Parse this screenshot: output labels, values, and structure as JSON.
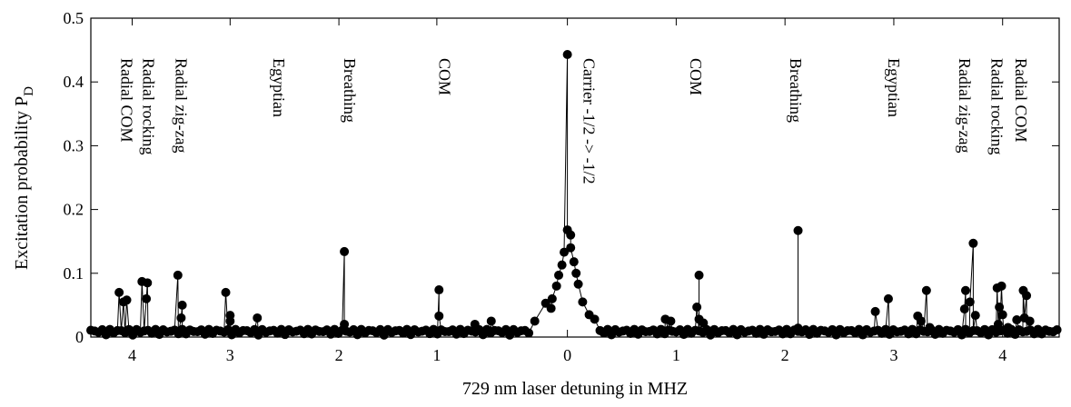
{
  "chart_data": {
    "type": "scatter",
    "xlabel": "729 nm laser detuning in MHZ",
    "ylabel": "Excitation probability P",
    "ylabel_sub": "D",
    "ylim": [
      0,
      0.5
    ],
    "xlim": [
      -4.38,
      4.52
    ],
    "yticks": [
      {
        "v": 0,
        "label": "0"
      },
      {
        "v": 0.1,
        "label": "0.1"
      },
      {
        "v": 0.2,
        "label": "0.2"
      },
      {
        "v": 0.3,
        "label": "0.3"
      },
      {
        "v": 0.4,
        "label": "0.4"
      },
      {
        "v": 0.5,
        "label": "0.5"
      }
    ],
    "xticks": [
      {
        "v": -4.0,
        "label": "4"
      },
      {
        "v": -3.1,
        "label": "3"
      },
      {
        "v": -2.1,
        "label": "2"
      },
      {
        "v": -1.2,
        "label": "1"
      },
      {
        "v": 0.0,
        "label": "0"
      },
      {
        "v": 1.0,
        "label": "1"
      },
      {
        "v": 2.0,
        "label": "2"
      },
      {
        "v": 3.0,
        "label": "3"
      },
      {
        "v": 4.0,
        "label": "4"
      }
    ],
    "annotations": [
      {
        "text": "Radial COM",
        "x": -4.1
      },
      {
        "text": "Radial rocking",
        "x": -3.9
      },
      {
        "text": "Radial zig-zag",
        "x": -3.6
      },
      {
        "text": "Egyptian",
        "x": -2.7
      },
      {
        "text": "Breathing",
        "x": -2.05
      },
      {
        "text": "COM",
        "x": -1.18
      },
      {
        "text": "Carrier -1/2 -> -1/2",
        "x": 0.15
      },
      {
        "text": "COM",
        "x": 1.13
      },
      {
        "text": "Breathing",
        "x": 2.05
      },
      {
        "text": "Egyptian",
        "x": 2.95
      },
      {
        "text": "Radial zig-zag",
        "x": 3.6
      },
      {
        "text": "Radial rocking",
        "x": 3.9
      },
      {
        "text": "Radial COM",
        "x": 4.12
      }
    ],
    "peaks": [
      {
        "x": -4.12,
        "y": 0.07
      },
      {
        "x": -4.08,
        "y": 0.055
      },
      {
        "x": -4.05,
        "y": 0.058
      },
      {
        "x": -3.91,
        "y": 0.087
      },
      {
        "x": -3.86,
        "y": 0.085
      },
      {
        "x": -3.87,
        "y": 0.06
      },
      {
        "x": -3.58,
        "y": 0.097
      },
      {
        "x": -3.54,
        "y": 0.05
      },
      {
        "x": -3.55,
        "y": 0.03
      },
      {
        "x": -3.14,
        "y": 0.07
      },
      {
        "x": -3.1,
        "y": 0.034
      },
      {
        "x": -3.1,
        "y": 0.025
      },
      {
        "x": -2.85,
        "y": 0.03
      },
      {
        "x": -2.05,
        "y": 0.134
      },
      {
        "x": -2.05,
        "y": 0.02
      },
      {
        "x": -1.18,
        "y": 0.074
      },
      {
        "x": -1.18,
        "y": 0.033
      },
      {
        "x": -0.85,
        "y": 0.02
      },
      {
        "x": -0.7,
        "y": 0.025
      },
      {
        "x": -0.3,
        "y": 0.025
      },
      {
        "x": 0.0,
        "y": 0.443
      },
      {
        "x": 0.0,
        "y": 0.168
      },
      {
        "x": 0.03,
        "y": 0.16
      },
      {
        "x": 0.03,
        "y": 0.14
      },
      {
        "x": -0.03,
        "y": 0.133
      },
      {
        "x": 0.06,
        "y": 0.118
      },
      {
        "x": -0.05,
        "y": 0.113
      },
      {
        "x": -0.08,
        "y": 0.097
      },
      {
        "x": 0.08,
        "y": 0.1
      },
      {
        "x": -0.1,
        "y": 0.08
      },
      {
        "x": 0.1,
        "y": 0.083
      },
      {
        "x": -0.14,
        "y": 0.06
      },
      {
        "x": 0.14,
        "y": 0.055
      },
      {
        "x": -0.2,
        "y": 0.053
      },
      {
        "x": 0.2,
        "y": 0.035
      },
      {
        "x": -0.15,
        "y": 0.045
      },
      {
        "x": 0.25,
        "y": 0.028
      },
      {
        "x": 0.9,
        "y": 0.028
      },
      {
        "x": 0.95,
        "y": 0.025
      },
      {
        "x": 1.21,
        "y": 0.097
      },
      {
        "x": 1.19,
        "y": 0.047
      },
      {
        "x": 1.21,
        "y": 0.028
      },
      {
        "x": 1.25,
        "y": 0.022
      },
      {
        "x": 2.12,
        "y": 0.167
      },
      {
        "x": 2.12,
        "y": 0.014
      },
      {
        "x": 2.83,
        "y": 0.04
      },
      {
        "x": 2.95,
        "y": 0.06
      },
      {
        "x": 3.22,
        "y": 0.033
      },
      {
        "x": 3.25,
        "y": 0.025
      },
      {
        "x": 3.3,
        "y": 0.073
      },
      {
        "x": 3.33,
        "y": 0.015
      },
      {
        "x": 3.66,
        "y": 0.073
      },
      {
        "x": 3.65,
        "y": 0.044
      },
      {
        "x": 3.7,
        "y": 0.055
      },
      {
        "x": 3.73,
        "y": 0.147
      },
      {
        "x": 3.75,
        "y": 0.034
      },
      {
        "x": 3.95,
        "y": 0.077
      },
      {
        "x": 3.99,
        "y": 0.08
      },
      {
        "x": 3.97,
        "y": 0.047
      },
      {
        "x": 4.0,
        "y": 0.035
      },
      {
        "x": 3.96,
        "y": 0.02
      },
      {
        "x": 4.05,
        "y": 0.015
      },
      {
        "x": 4.13,
        "y": 0.027
      },
      {
        "x": 4.19,
        "y": 0.073
      },
      {
        "x": 4.22,
        "y": 0.065
      },
      {
        "x": 4.2,
        "y": 0.03
      },
      {
        "x": 4.25,
        "y": 0.025
      }
    ],
    "baseline_segments": [
      {
        "from": -4.38,
        "to": -0.35,
        "step": 0.035,
        "max_y": 0.012
      },
      {
        "from": 0.3,
        "to": 4.52,
        "step": 0.035,
        "max_y": 0.012
      }
    ]
  }
}
